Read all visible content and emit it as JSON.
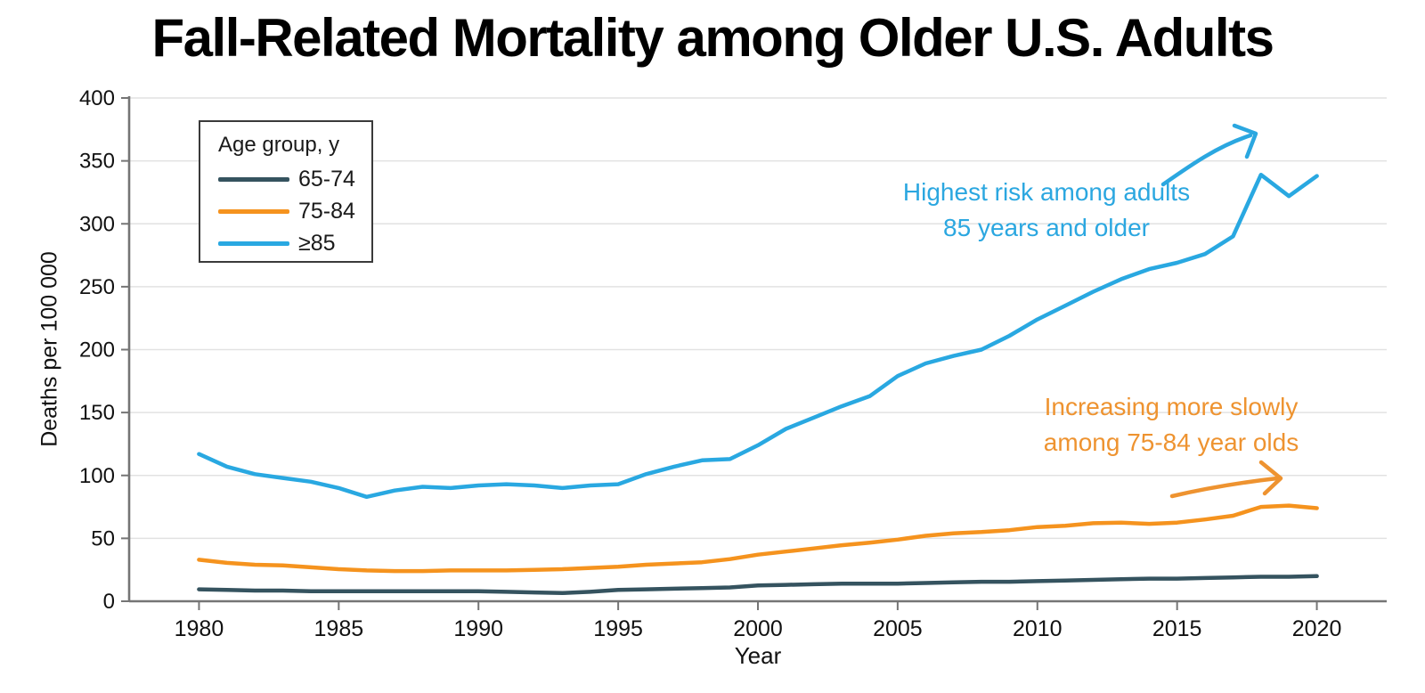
{
  "title": "Fall-Related Mortality among Older U.S. Adults",
  "chart_data": {
    "type": "line",
    "title": "Fall-Related Mortality among Older U.S. Adults",
    "xlabel": "Year",
    "ylabel": "Deaths per 100 000",
    "xlim": [
      1977.5,
      2022.5
    ],
    "ylim": [
      0,
      400
    ],
    "xticks": [
      1980,
      1985,
      1990,
      1995,
      2000,
      2005,
      2010,
      2015,
      2020
    ],
    "yticks": [
      0,
      50,
      100,
      150,
      200,
      250,
      300,
      350,
      400
    ],
    "grid": "horizontal-only",
    "legend": {
      "title": "Age group, y",
      "position": "upper-left"
    },
    "x": [
      1980,
      1981,
      1982,
      1983,
      1984,
      1985,
      1986,
      1987,
      1988,
      1989,
      1990,
      1991,
      1992,
      1993,
      1994,
      1995,
      1996,
      1997,
      1998,
      1999,
      2000,
      2001,
      2002,
      2003,
      2004,
      2005,
      2006,
      2007,
      2008,
      2009,
      2010,
      2011,
      2012,
      2013,
      2014,
      2015,
      2016,
      2017,
      2018,
      2019,
      2020
    ],
    "series": [
      {
        "name": "65-74",
        "color": "#35535f",
        "values": [
          9.5,
          9,
          8.5,
          8.5,
          8,
          8,
          8,
          8,
          8,
          8,
          8,
          7.5,
          7,
          6.5,
          7.5,
          9,
          9.5,
          10,
          10.5,
          11,
          12.5,
          13,
          13.5,
          14,
          14,
          14,
          14.5,
          15,
          15.5,
          15.5,
          16,
          16.5,
          17,
          17.5,
          18,
          18,
          18.5,
          19,
          19.5,
          19.5,
          20
        ]
      },
      {
        "name": "75-84",
        "color": "#f5931e",
        "values": [
          33,
          30.5,
          29,
          28.5,
          27,
          25.5,
          24.5,
          24,
          24,
          24.5,
          24.5,
          24.5,
          25,
          25.5,
          26.5,
          27.5,
          29,
          30,
          31,
          33.5,
          37,
          39.5,
          42,
          44.5,
          46.5,
          49,
          52,
          54,
          55,
          56.5,
          59,
          60,
          62,
          62.5,
          61.5,
          62.5,
          65,
          68,
          75,
          76,
          74
        ]
      },
      {
        "name": "≥85",
        "color": "#29a8e1",
        "values": [
          117,
          107,
          101,
          98,
          95,
          90,
          83,
          88,
          91,
          90,
          92,
          93,
          92,
          90,
          92,
          93,
          101,
          107,
          112,
          113,
          124,
          137,
          146,
          155,
          163,
          179,
          189,
          195,
          200,
          211,
          224,
          235,
          246,
          256,
          264,
          269,
          276,
          290,
          339,
          322,
          338
        ]
      }
    ],
    "annotations": [
      {
        "color": "#2ba7e0",
        "lines": [
          "Highest risk among adults",
          "85 years and older"
        ]
      },
      {
        "color": "#ee9330",
        "lines": [
          "Increasing more slowly",
          "among 75-84 year olds"
        ]
      }
    ],
    "style": {
      "background": "#ffffff",
      "gridline_color": "#e2e2e2",
      "axis_color": "#757575",
      "tick_label_color": "#111111"
    }
  }
}
